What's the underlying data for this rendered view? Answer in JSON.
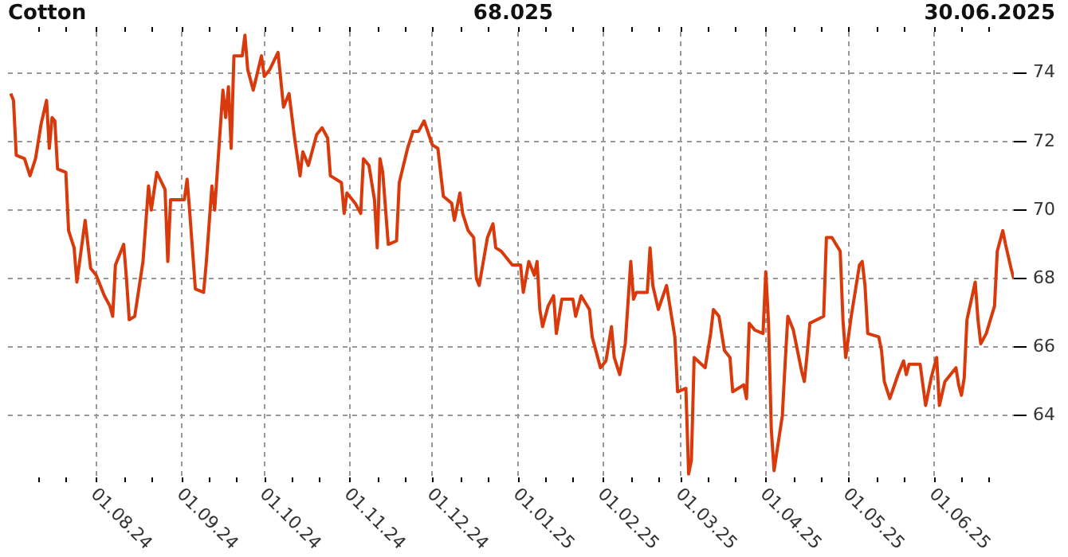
{
  "chart_data": {
    "type": "line",
    "title": "Cotton",
    "subtitle": "68.025",
    "annotations": [
      "30.06.2025"
    ],
    "x": [
      "2024-07-01",
      "2024-07-02",
      "2024-07-03",
      "2024-07-06",
      "2024-07-08",
      "2024-07-10",
      "2024-07-12",
      "2024-07-14",
      "2024-07-15",
      "2024-07-16",
      "2024-07-17",
      "2024-07-18",
      "2024-07-21",
      "2024-07-22",
      "2024-07-24",
      "2024-07-25",
      "2024-07-28",
      "2024-07-30",
      "2024-08-01",
      "2024-08-04",
      "2024-08-06",
      "2024-08-07",
      "2024-08-08",
      "2024-08-11",
      "2024-08-12",
      "2024-08-13",
      "2024-08-15",
      "2024-08-18",
      "2024-08-20",
      "2024-08-21",
      "2024-08-23",
      "2024-08-26",
      "2024-08-27",
      "2024-08-28",
      "2024-09-02",
      "2024-09-03",
      "2024-09-04",
      "2024-09-06",
      "2024-09-09",
      "2024-09-10",
      "2024-09-12",
      "2024-09-13",
      "2024-09-16",
      "2024-09-17",
      "2024-09-18",
      "2024-09-19",
      "2024-09-20",
      "2024-09-23",
      "2024-09-24",
      "2024-09-25",
      "2024-09-27",
      "2024-09-30",
      "2024-10-01",
      "2024-10-03",
      "2024-10-06",
      "2024-10-08",
      "2024-10-10",
      "2024-10-12",
      "2024-10-14",
      "2024-10-15",
      "2024-10-17",
      "2024-10-20",
      "2024-10-22",
      "2024-10-24",
      "2024-10-25",
      "2024-10-29",
      "2024-10-30",
      "2024-10-31",
      "2024-11-03",
      "2024-11-05",
      "2024-11-06",
      "2024-11-08",
      "2024-11-10",
      "2024-11-11",
      "2024-11-12",
      "2024-11-13",
      "2024-11-15",
      "2024-11-18",
      "2024-11-19",
      "2024-11-22",
      "2024-11-24",
      "2024-11-26",
      "2024-11-28",
      "2024-12-01",
      "2024-12-03",
      "2024-12-05",
      "2024-12-08",
      "2024-12-09",
      "2024-12-11",
      "2024-12-12",
      "2024-12-14",
      "2024-12-16",
      "2024-12-17",
      "2024-12-18",
      "2024-12-21",
      "2024-12-23",
      "2024-12-24",
      "2024-12-26",
      "2024-12-30",
      "2025-01-02",
      "2025-01-03",
      "2025-01-05",
      "2025-01-07",
      "2025-01-08",
      "2025-01-09",
      "2025-01-10",
      "2025-01-12",
      "2025-01-14",
      "2025-01-15",
      "2025-01-17",
      "2025-01-21",
      "2025-01-22",
      "2025-01-24",
      "2025-01-27",
      "2025-01-28",
      "2025-01-31",
      "2025-02-02",
      "2025-02-04",
      "2025-02-05",
      "2025-02-07",
      "2025-02-09",
      "2025-02-11",
      "2025-02-12",
      "2025-02-13",
      "2025-02-17",
      "2025-02-18",
      "2025-02-19",
      "2025-02-21",
      "2025-02-24",
      "2025-02-27",
      "2025-02-28",
      "2025-03-03",
      "2025-03-04",
      "2025-03-05",
      "2025-03-06",
      "2025-03-10",
      "2025-03-12",
      "2025-03-13",
      "2025-03-15",
      "2025-03-17",
      "2025-03-19",
      "2025-03-20",
      "2025-03-24",
      "2025-03-25",
      "2025-03-26",
      "2025-03-28",
      "2025-03-31",
      "2025-04-01",
      "2025-04-02",
      "2025-04-03",
      "2025-04-04",
      "2025-04-07",
      "2025-04-08",
      "2025-04-09",
      "2025-04-11",
      "2025-04-14",
      "2025-04-15",
      "2025-04-16",
      "2025-04-17",
      "2025-04-22",
      "2025-04-23",
      "2025-04-25",
      "2025-04-28",
      "2025-04-29",
      "2025-04-30",
      "2025-05-02",
      "2025-05-05",
      "2025-05-06",
      "2025-05-07",
      "2025-05-08",
      "2025-05-12",
      "2025-05-13",
      "2025-05-14",
      "2025-05-16",
      "2025-05-19",
      "2025-05-21",
      "2025-05-22",
      "2025-05-23",
      "2025-05-27",
      "2025-05-29",
      "2025-05-31",
      "2025-06-02",
      "2025-06-03",
      "2025-06-05",
      "2025-06-09",
      "2025-06-10",
      "2025-06-11",
      "2025-06-12",
      "2025-06-13",
      "2025-06-16",
      "2025-06-17",
      "2025-06-18",
      "2025-06-20",
      "2025-06-23",
      "2025-06-24",
      "2025-06-26",
      "2025-06-27",
      "2025-06-29",
      "2025-06-30"
    ],
    "series": [
      {
        "color": "#d93a0b",
        "values": [
          73.4,
          73.2,
          71.6,
          71.5,
          71.0,
          71.5,
          72.5,
          73.2,
          71.8,
          72.7,
          72.6,
          71.2,
          71.1,
          69.4,
          68.9,
          67.9,
          69.7,
          68.3,
          68.1,
          67.5,
          67.2,
          66.9,
          68.4,
          69.0,
          68.0,
          66.8,
          66.9,
          68.5,
          70.7,
          70.0,
          71.1,
          70.6,
          68.5,
          70.3,
          70.3,
          70.9,
          69.9,
          67.7,
          67.6,
          68.5,
          70.7,
          70.0,
          73.5,
          72.7,
          73.6,
          71.8,
          74.5,
          74.5,
          75.1,
          74.1,
          73.5,
          74.5,
          73.9,
          74.1,
          74.6,
          73.0,
          73.4,
          72.1,
          71.0,
          71.7,
          71.3,
          72.2,
          72.4,
          72.1,
          71.0,
          70.8,
          69.9,
          70.5,
          70.2,
          69.9,
          71.5,
          71.3,
          70.3,
          68.9,
          71.5,
          71.1,
          69.0,
          69.1,
          70.8,
          71.8,
          72.3,
          72.3,
          72.6,
          71.9,
          71.8,
          70.4,
          70.2,
          69.7,
          70.5,
          69.9,
          69.4,
          69.2,
          68.0,
          67.8,
          69.2,
          69.6,
          68.9,
          68.8,
          68.4,
          68.4,
          67.6,
          68.5,
          68.1,
          68.5,
          67.1,
          66.6,
          67.2,
          67.5,
          66.4,
          67.4,
          67.4,
          66.9,
          67.5,
          67.1,
          66.3,
          65.4,
          65.6,
          66.6,
          65.7,
          65.2,
          66.1,
          68.5,
          67.4,
          67.6,
          67.6,
          68.9,
          67.8,
          67.1,
          67.8,
          66.3,
          64.7,
          64.8,
          62.3,
          62.7,
          65.7,
          65.4,
          66.4,
          67.1,
          66.9,
          65.9,
          65.7,
          64.7,
          64.9,
          64.5,
          66.7,
          66.5,
          66.4,
          68.2,
          66.7,
          63.6,
          62.4,
          64.0,
          65.5,
          66.9,
          66.5,
          65.3,
          65.0,
          65.8,
          66.7,
          66.9,
          69.2,
          69.2,
          68.8,
          66.8,
          65.7,
          66.9,
          68.4,
          68.5,
          67.8,
          66.4,
          66.3,
          65.9,
          65.0,
          64.5,
          65.2,
          65.6,
          65.2,
          65.5,
          65.5,
          64.3,
          65.1,
          65.7,
          64.3,
          65.0,
          65.4,
          64.9,
          64.6,
          65.1,
          66.8,
          67.9,
          66.8,
          66.1,
          66.4,
          67.2,
          68.8,
          69.4,
          69.0,
          68.3,
          68.0
        ]
      }
    ],
    "xlim": [
      "2024-06-30",
      "2025-06-30"
    ],
    "xticks": [
      {
        "value": "2024-07-11",
        "label": null
      },
      {
        "value": "2024-07-21",
        "label": null
      },
      {
        "value": "2024-08-01",
        "label": "01.08.24"
      },
      {
        "value": "2024-08-11",
        "label": null
      },
      {
        "value": "2024-08-21",
        "label": null
      },
      {
        "value": "2024-09-01",
        "label": "01.09.24"
      },
      {
        "value": "2024-09-11",
        "label": null
      },
      {
        "value": "2024-09-21",
        "label": null
      },
      {
        "value": "2024-10-01",
        "label": "01.10.24"
      },
      {
        "value": "2024-10-11",
        "label": null
      },
      {
        "value": "2024-10-21",
        "label": null
      },
      {
        "value": "2024-11-01",
        "label": "01.11.24"
      },
      {
        "value": "2024-11-11",
        "label": null
      },
      {
        "value": "2024-11-21",
        "label": null
      },
      {
        "value": "2024-12-01",
        "label": "01.12.24"
      },
      {
        "value": "2024-12-11",
        "label": null
      },
      {
        "value": "2024-12-21",
        "label": null
      },
      {
        "value": "2025-01-01",
        "label": "01.01.25"
      },
      {
        "value": "2025-01-11",
        "label": null
      },
      {
        "value": "2025-01-21",
        "label": null
      },
      {
        "value": "2025-02-01",
        "label": "01.02.25"
      },
      {
        "value": "2025-02-11",
        "label": null
      },
      {
        "value": "2025-02-21",
        "label": null
      },
      {
        "value": "2025-03-01",
        "label": "01.03.25"
      },
      {
        "value": "2025-03-11",
        "label": null
      },
      {
        "value": "2025-03-21",
        "label": null
      },
      {
        "value": "2025-04-01",
        "label": "01.04.25"
      },
      {
        "value": "2025-04-11",
        "label": null
      },
      {
        "value": "2025-04-21",
        "label": null
      },
      {
        "value": "2025-05-01",
        "label": "01.05.25"
      },
      {
        "value": "2025-05-11",
        "label": null
      },
      {
        "value": "2025-05-21",
        "label": null
      },
      {
        "value": "2025-06-01",
        "label": "01.06.25"
      },
      {
        "value": "2025-06-11",
        "label": null
      },
      {
        "value": "2025-06-21",
        "label": null
      }
    ],
    "ylim": [
      62.2,
      75.2
    ],
    "yticks": [
      64,
      66,
      68,
      70,
      72,
      74
    ],
    "grid": true,
    "legend": false,
    "marker": "none",
    "line_style": "solid"
  }
}
